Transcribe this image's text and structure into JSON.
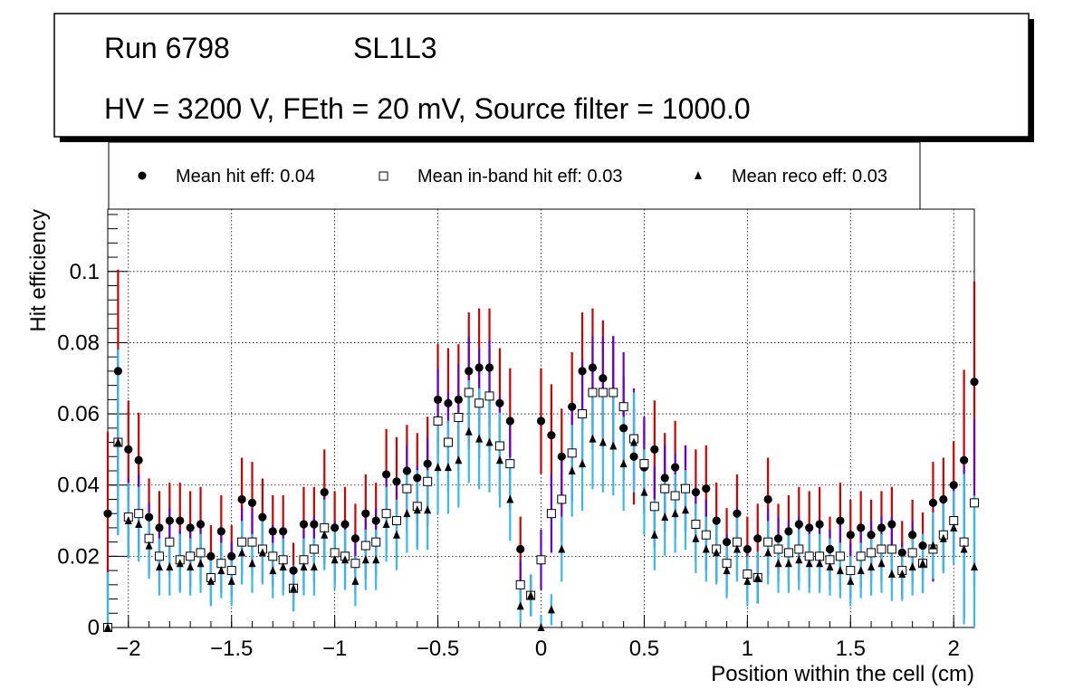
{
  "header": {
    "run": "Run 6798",
    "layer": "SL1L3",
    "settings": "HV = 3200 V, FEth = 20 mV, Source filter = 1000.0"
  },
  "legend": {
    "entries": [
      {
        "label": "Mean hit  eff: 0.04",
        "marker": "circle"
      },
      {
        "label": "Mean in-band hit eff: 0.03",
        "marker": "open-square"
      },
      {
        "label": "Mean reco eff: 0.03",
        "marker": "triangle"
      }
    ]
  },
  "chart_data": {
    "type": "scatter",
    "title": "",
    "xlabel": "Position within the cell (cm)",
    "ylabel": "Hit efficiency",
    "xlim": [
      -2.1,
      2.1
    ],
    "ylim": [
      0,
      0.1175
    ],
    "x_ticks": [
      {
        "value": -2,
        "label": "−2"
      },
      {
        "value": -1.5,
        "label": "−1.5"
      },
      {
        "value": -1,
        "label": "−1"
      },
      {
        "value": -0.5,
        "label": "−0.5"
      },
      {
        "value": 0,
        "label": "0"
      },
      {
        "value": 0.5,
        "label": "0.5"
      },
      {
        "value": 1,
        "label": "1"
      },
      {
        "value": 1.5,
        "label": "1.5"
      },
      {
        "value": 2,
        "label": "2"
      }
    ],
    "y_ticks": [
      {
        "value": 0,
        "label": "0"
      },
      {
        "value": 0.02,
        "label": "0.02"
      },
      {
        "value": 0.04,
        "label": "0.04"
      },
      {
        "value": 0.06,
        "label": "0.06"
      },
      {
        "value": 0.08,
        "label": "0.08"
      },
      {
        "value": 0.1,
        "label": "0.1"
      }
    ],
    "grid": true,
    "colors": {
      "hit_err": "#cc0000",
      "band_err": "#6600cc",
      "reco_err": "#33bbee",
      "marker": "#000000"
    },
    "x": [
      -2.1,
      -2.05,
      -2.0,
      -1.95,
      -1.9,
      -1.85,
      -1.8,
      -1.75,
      -1.7,
      -1.65,
      -1.6,
      -1.55,
      -1.5,
      -1.45,
      -1.4,
      -1.35,
      -1.3,
      -1.25,
      -1.2,
      -1.15,
      -1.1,
      -1.05,
      -1.0,
      -0.95,
      -0.9,
      -0.85,
      -0.8,
      -0.75,
      -0.7,
      -0.65,
      -0.6,
      -0.55,
      -0.5,
      -0.45,
      -0.4,
      -0.35,
      -0.3,
      -0.25,
      -0.2,
      -0.15,
      -0.1,
      -0.05,
      0.0,
      0.05,
      0.1,
      0.15,
      0.2,
      0.25,
      0.3,
      0.35,
      0.4,
      0.45,
      0.5,
      0.55,
      0.6,
      0.65,
      0.7,
      0.75,
      0.8,
      0.85,
      0.9,
      0.95,
      1.0,
      1.05,
      1.1,
      1.15,
      1.2,
      1.25,
      1.3,
      1.35,
      1.4,
      1.45,
      1.5,
      1.55,
      1.6,
      1.65,
      1.7,
      1.75,
      1.8,
      1.85,
      1.9,
      1.95,
      2.0,
      2.05,
      2.1
    ],
    "series": [
      {
        "name": "Mean hit  eff: 0.04",
        "marker": "circle",
        "values": [
          0.032,
          0.072,
          0.05,
          0.047,
          0.031,
          0.028,
          0.03,
          0.03,
          0.028,
          0.029,
          0.02,
          0.027,
          0.02,
          0.036,
          0.035,
          0.031,
          0.027,
          0.027,
          0.016,
          0.029,
          0.029,
          0.038,
          0.028,
          0.029,
          0.025,
          0.032,
          0.03,
          0.043,
          0.041,
          0.044,
          0.042,
          0.046,
          0.064,
          0.063,
          0.064,
          0.072,
          0.073,
          0.073,
          0.063,
          0.058,
          0.022,
          0.009,
          0.058,
          0.054,
          0.048,
          0.062,
          0.072,
          0.073,
          0.07,
          0.066,
          0.056,
          0.048,
          0.045,
          0.05,
          0.042,
          0.045,
          0.039,
          0.038,
          0.039,
          0.03,
          0.024,
          0.032,
          0.022,
          0.025,
          0.036,
          0.025,
          0.027,
          0.029,
          0.028,
          0.029,
          0.022,
          0.03,
          0.026,
          0.028,
          0.026,
          0.028,
          0.029,
          0.021,
          0.026,
          0.023,
          0.035,
          0.036,
          0.04,
          0.047,
          0.069
        ]
      },
      {
        "name": "Mean in-band hit eff: 0.03",
        "marker": "open-square",
        "values": [
          0.0,
          0.052,
          0.031,
          0.032,
          0.025,
          0.02,
          0.024,
          0.019,
          0.02,
          0.021,
          0.014,
          0.018,
          0.016,
          0.024,
          0.024,
          0.022,
          0.02,
          0.019,
          0.011,
          0.019,
          0.022,
          0.028,
          0.021,
          0.02,
          0.018,
          0.023,
          0.024,
          0.032,
          0.03,
          0.039,
          0.034,
          0.041,
          0.058,
          0.052,
          0.059,
          0.066,
          0.063,
          0.065,
          0.051,
          0.046,
          0.012,
          0.009,
          0.019,
          0.032,
          0.036,
          0.049,
          0.06,
          0.066,
          0.066,
          0.066,
          0.062,
          0.053,
          0.046,
          0.034,
          0.039,
          0.037,
          0.039,
          0.029,
          0.026,
          0.022,
          0.018,
          0.024,
          0.015,
          0.014,
          0.024,
          0.022,
          0.021,
          0.022,
          0.02,
          0.02,
          0.019,
          0.02,
          0.016,
          0.02,
          0.021,
          0.022,
          0.022,
          0.016,
          0.021,
          0.018,
          0.022,
          0.026,
          0.03,
          0.024,
          0.035
        ]
      },
      {
        "name": "Mean reco eff: 0.03",
        "marker": "triangle",
        "values": [
          0.0,
          0.052,
          0.03,
          0.029,
          0.023,
          0.017,
          0.017,
          0.018,
          0.017,
          0.018,
          0.013,
          0.016,
          0.013,
          0.021,
          0.018,
          0.021,
          0.016,
          0.017,
          0.011,
          0.017,
          0.017,
          0.026,
          0.019,
          0.019,
          0.013,
          0.019,
          0.019,
          0.029,
          0.026,
          0.032,
          0.033,
          0.033,
          0.045,
          0.045,
          0.047,
          0.055,
          0.053,
          0.052,
          0.047,
          0.036,
          0.006,
          0.009,
          0.0,
          0.005,
          0.022,
          0.044,
          0.046,
          0.053,
          0.052,
          0.051,
          0.046,
          0.052,
          0.038,
          0.026,
          0.031,
          0.032,
          0.033,
          0.025,
          0.022,
          0.021,
          0.016,
          0.022,
          0.013,
          0.014,
          0.021,
          0.018,
          0.018,
          0.019,
          0.018,
          0.018,
          0.017,
          0.016,
          0.013,
          0.016,
          0.017,
          0.018,
          0.015,
          0.015,
          0.017,
          0.018,
          0.023,
          0.025,
          0.028,
          0.022,
          0.017
        ]
      }
    ]
  }
}
